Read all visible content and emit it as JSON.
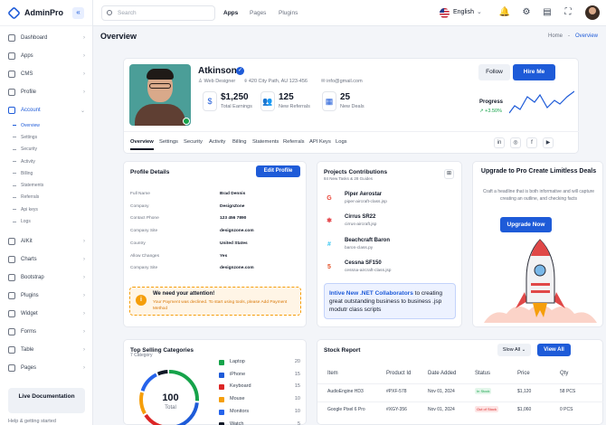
{
  "brand": {
    "name": "AdminPro"
  },
  "sidebar": {
    "items": [
      {
        "label": "Dashboard",
        "chev": "›"
      },
      {
        "label": "Apps",
        "chev": "›"
      },
      {
        "label": "CMS",
        "chev": "›"
      },
      {
        "label": "Profile",
        "chev": "›"
      },
      {
        "label": "Account",
        "chev": "⌄"
      }
    ],
    "subitems": [
      "Overview",
      "Settings",
      "Security",
      "Activity",
      "Billing",
      "Statements",
      "Referrals",
      "Api keys",
      "Logs"
    ],
    "items2": [
      {
        "label": "AIKit",
        "chev": "›"
      },
      {
        "label": "Charts",
        "chev": "›"
      },
      {
        "label": "Bootstrap",
        "chev": "›"
      },
      {
        "label": "Plugins",
        "chev": "›"
      },
      {
        "label": "Widget",
        "chev": "›"
      },
      {
        "label": "Forms",
        "chev": "›"
      },
      {
        "label": "Table",
        "chev": "›"
      },
      {
        "label": "Pages",
        "chev": "›"
      }
    ],
    "live_doc": "Live Documentation",
    "help": "Help & getting started"
  },
  "topbar": {
    "search_placeholder": "Search",
    "nav": [
      "Apps",
      "Pages",
      "Plugins"
    ],
    "language": "English"
  },
  "page": {
    "title": "Overview",
    "breadcrumb": [
      "Home",
      "-",
      "Overview"
    ]
  },
  "profile": {
    "name": "Atkinson",
    "role": "Web Designer",
    "address": "420 City Path, AU 123-456",
    "email": "info@gmail.com",
    "stats": [
      {
        "value": "$1,250",
        "label": "Total Earnings",
        "icon": "$"
      },
      {
        "value": "125",
        "label": "New Referrals",
        "icon": "👥"
      },
      {
        "value": "25",
        "label": "New Deals",
        "icon": "▦"
      }
    ],
    "follow": "Follow",
    "hire": "Hire Me",
    "progress_label": "Progress",
    "progress_value": "+3.50%",
    "tabs": [
      "Overview",
      "Settings",
      "Security",
      "Activity",
      "Billing",
      "Statements",
      "Referrals",
      "API Keys",
      "Logs"
    ],
    "social": [
      "in",
      "◎",
      "f",
      "▶"
    ]
  },
  "details": {
    "title": "Profile Details",
    "edit": "Edit Profile",
    "rows": [
      {
        "k": "Full Name",
        "v": "Brad Dennis"
      },
      {
        "k": "Company",
        "v": "DesignZone"
      },
      {
        "k": "Contact Phone",
        "v": "123 456 7890"
      },
      {
        "k": "Company Site",
        "v": "designzone.com"
      },
      {
        "k": "Country",
        "v": "United States"
      },
      {
        "k": "Allow Changes",
        "v": "Yes"
      },
      {
        "k": "Company Site",
        "v": "designzone.com"
      }
    ],
    "alert_title": "We need your attention!",
    "alert_body": "Your Payment was declined. To start using tools, please Add Payment Method"
  },
  "projects": {
    "title": "Projects Contributions",
    "subtitle": "84 New Tasks & 28 Guides",
    "items": [
      {
        "name": "Piper Aerostar",
        "file": "piper-aircraft-class.jsp",
        "letter": "G",
        "color": "#ea4335"
      },
      {
        "name": "Cirrus SR22",
        "file": "cirrus-aircraft.jsp",
        "letter": "✱",
        "color": "#e5484d"
      },
      {
        "name": "Beachcraft Baron",
        "file": "baron-class.py",
        "letter": "#",
        "color": "#36c5f0"
      },
      {
        "name": "Cessna SF150",
        "file": "cessna-aircraft-class.jsp",
        "letter": "5",
        "color": "#e34f26"
      }
    ],
    "collab_bold": "Intive New .NET Collaborators",
    "collab_rest": " to creating great outstanding business to business .jsp modutr class scripts"
  },
  "upgrade": {
    "title": "Upgrade to Pro Create Limitless Deals",
    "desc": "Craft a headline that is both informative and will capture creating an outline, and checking facts",
    "button": "Upgrade Now"
  },
  "top_selling": {
    "title": "Top Selling Categories",
    "subtitle": "7 Category",
    "total": "100",
    "total_label": "Total",
    "legend": [
      {
        "name": "Laptop",
        "value": "20",
        "color": "#16a34a"
      },
      {
        "name": "iPhone",
        "value": "15",
        "color": "#1e5bd8"
      },
      {
        "name": "Keyboard",
        "value": "15",
        "color": "#dc2626"
      },
      {
        "name": "Mouse",
        "value": "10",
        "color": "#f59e0b"
      },
      {
        "name": "Monitors",
        "value": "10",
        "color": "#2563eb"
      },
      {
        "name": "Watch",
        "value": "5",
        "color": "#111827"
      }
    ]
  },
  "stock": {
    "title": "Stock Report",
    "select": "Slow All ⌄",
    "view": "View All",
    "headers": [
      "Item",
      "Product Id",
      "Date Added",
      "Status",
      "Price",
      "Qty"
    ],
    "rows": [
      {
        "item": "AudioEngine HD3",
        "id": "#PXF-578",
        "date": "Nov 01, 2024",
        "status": "In Stock",
        "status_color": "#16a34a",
        "status_bg": "#e3f6ea",
        "price": "$1,120",
        "qty": "58 PCS"
      },
      {
        "item": "Google Pixel 6 Pro",
        "id": "#XGY-356",
        "date": "Nov 01, 2024",
        "status": "Out of Stock",
        "status_color": "#dc2626",
        "status_bg": "#fde4e4",
        "price": "$1,060",
        "qty": "0 PCS"
      }
    ]
  }
}
